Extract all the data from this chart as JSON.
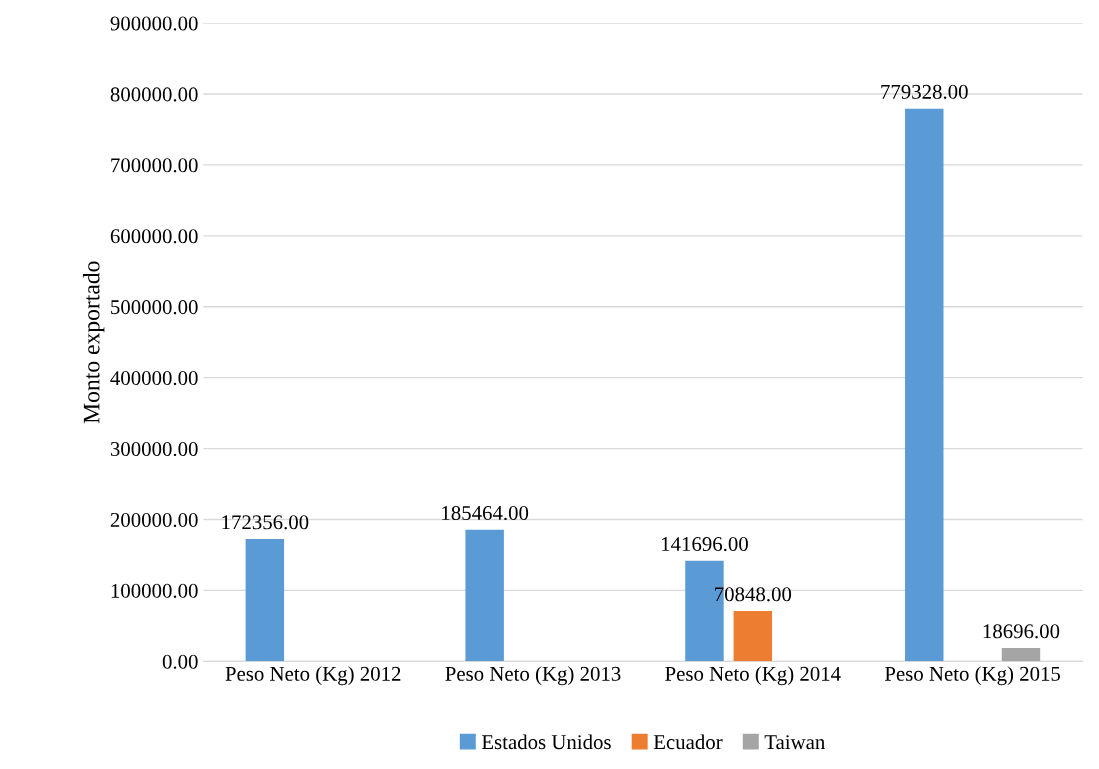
{
  "chart_data": {
    "type": "bar",
    "ylabel": "Monto exportado",
    "categories": [
      "Peso Neto (Kg) 2012",
      "Peso Neto (Kg) 2013",
      "Peso Neto (Kg) 2014",
      "Peso Neto (Kg) 2015"
    ],
    "series": [
      {
        "name": "Estados Unidos",
        "color": "#5b9bd5",
        "values": [
          172356,
          185464,
          141696,
          779328
        ],
        "value_labels": [
          "172356.00",
          "185464.00",
          "141696.00",
          "779328.00"
        ]
      },
      {
        "name": "Ecuador",
        "color": "#ed7d31",
        "values": [
          null,
          null,
          70848,
          null
        ],
        "value_labels": [
          null,
          null,
          "70848.00",
          null
        ]
      },
      {
        "name": "Taiwan",
        "color": "#a5a5a5",
        "values": [
          null,
          null,
          null,
          18696
        ],
        "value_labels": [
          null,
          null,
          null,
          "18696.00"
        ]
      }
    ],
    "ylim": [
      0,
      900000
    ],
    "yticks": [
      {
        "value": 0,
        "label": "0.00"
      },
      {
        "value": 100000,
        "label": "100000.00"
      },
      {
        "value": 200000,
        "label": "200000.00"
      },
      {
        "value": 300000,
        "label": "300000.00"
      },
      {
        "value": 400000,
        "label": "400000.00"
      },
      {
        "value": 500000,
        "label": "500000.00"
      },
      {
        "value": 600000,
        "label": "600000.00"
      },
      {
        "value": 700000,
        "label": "700000.00"
      },
      {
        "value": 800000,
        "label": "800000.00"
      },
      {
        "value": 900000,
        "label": "900000.00"
      }
    ],
    "grid": "y",
    "legend": "bottom"
  }
}
